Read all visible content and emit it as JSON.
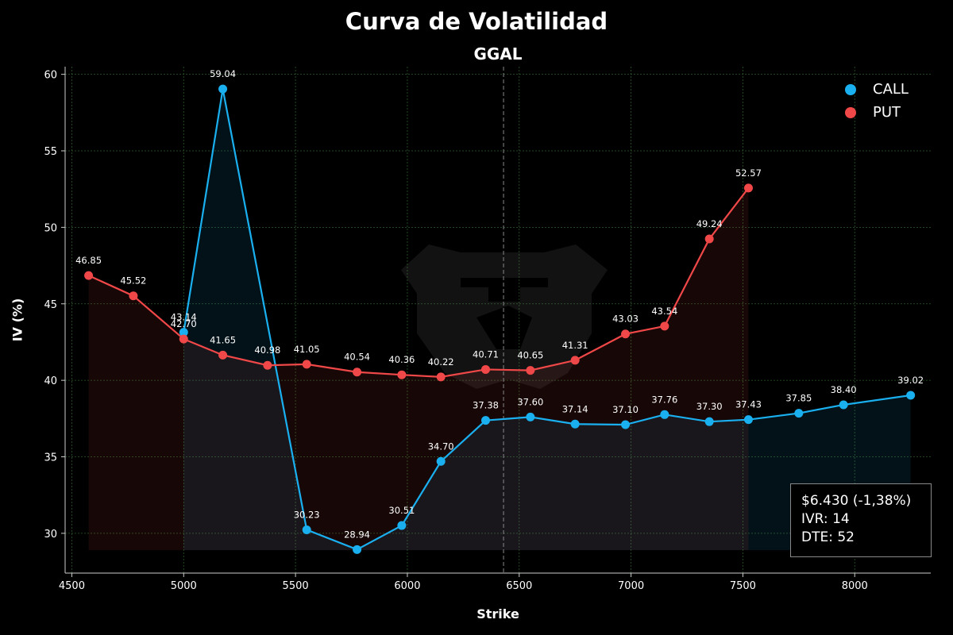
{
  "title": "Curva de Volatilidad",
  "subtitle": "GGAL",
  "info": {
    "price": "$6.430 (-1,38%)",
    "ivr": "IVR: 14",
    "dte": "DTE: 52"
  },
  "colors": {
    "background": "#000000",
    "call": "#1ab0f0",
    "put": "#f04848",
    "grid": "#2a5a2a",
    "spot_line": "#888888"
  },
  "chart_data": {
    "type": "line",
    "title": "GGAL",
    "xlabel": "Strike",
    "ylabel": "IV (%)",
    "xlim": [
      4470,
      8340
    ],
    "ylim": [
      27.4,
      60.5
    ],
    "xticks": [
      4500,
      5000,
      5500,
      6000,
      6500,
      7000,
      7500,
      8000
    ],
    "yticks": [
      30,
      35,
      40,
      45,
      50,
      55,
      60
    ],
    "grid": true,
    "legend_position": "top-right",
    "spot_price": 6430,
    "series": [
      {
        "name": "CALL",
        "color": "#1ab0f0",
        "x": [
          5000,
          5175,
          5550,
          5775,
          5975,
          6150,
          6350,
          6550,
          6750,
          6975,
          7150,
          7350,
          7525,
          7750,
          7950,
          8250
        ],
        "y": [
          43.14,
          59.04,
          30.23,
          28.94,
          30.51,
          34.7,
          37.38,
          37.6,
          37.14,
          37.1,
          37.76,
          37.3,
          37.43,
          37.85,
          38.4,
          39.02
        ]
      },
      {
        "name": "PUT",
        "color": "#f04848",
        "x": [
          4575,
          4775,
          5000,
          5175,
          5375,
          5550,
          5775,
          5975,
          6150,
          6350,
          6550,
          6750,
          6975,
          7150,
          7350,
          7525
        ],
        "y": [
          46.85,
          45.52,
          42.7,
          41.65,
          40.98,
          41.05,
          40.54,
          40.36,
          40.22,
          40.71,
          40.65,
          41.31,
          43.03,
          43.54,
          49.24,
          52.57
        ]
      }
    ]
  }
}
